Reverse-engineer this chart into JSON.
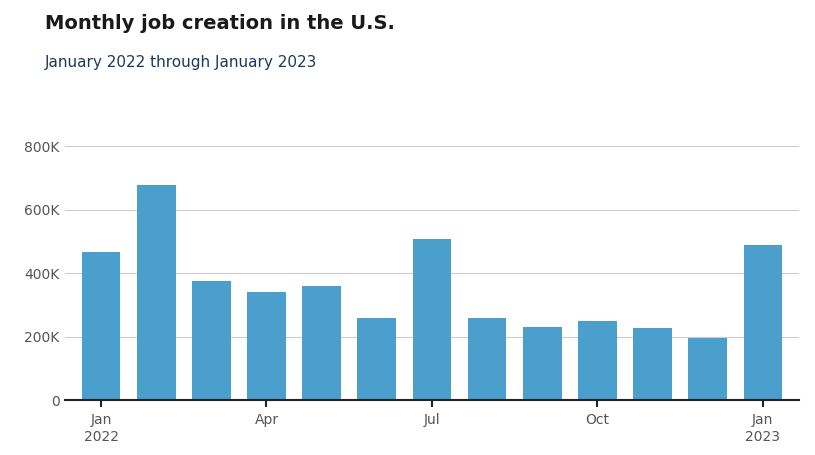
{
  "title": "Monthly job creation in the U.S.",
  "subtitle": "January 2022 through January 2023",
  "title_color": "#1a1a1a",
  "subtitle_color": "#1a3a5c",
  "bar_color": "#4A9FCC",
  "background_color": "#ffffff",
  "values": [
    467000,
    678000,
    375000,
    340000,
    360000,
    260000,
    510000,
    260000,
    232000,
    250000,
    227000,
    195000,
    491000
  ],
  "tick_positions_x": [
    0,
    3,
    6,
    9,
    12
  ],
  "tick_labels_x": [
    "Jan\n2022",
    "Apr",
    "Jul",
    "Oct",
    "Jan\n2023"
  ],
  "ylim": [
    0,
    860000
  ],
  "yticks": [
    0,
    200000,
    400000,
    600000,
    800000
  ],
  "ytick_labels": [
    "0",
    "200K",
    "400K",
    "600K",
    "800K"
  ],
  "grid_color": "#cccccc",
  "axis_line_color": "#222222",
  "bar_width": 0.7
}
